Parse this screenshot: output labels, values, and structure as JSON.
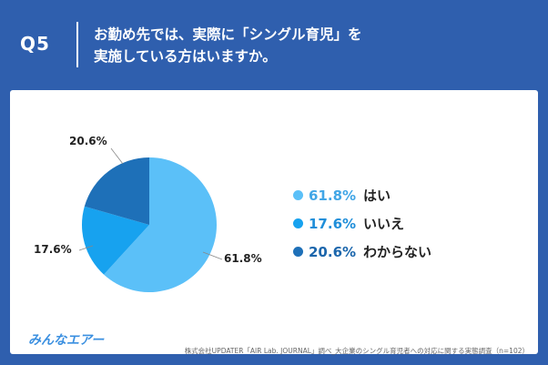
{
  "question": {
    "number": "Q5",
    "text_line1": "お勤め先では、実際に「シングル育児」を",
    "text_line2": "実施している方はいますか。"
  },
  "colors": {
    "header_bg": "#2F5FAE",
    "card_bg": "#FFFFFF"
  },
  "chart_data": {
    "type": "pie",
    "start_angle_deg": 0,
    "direction": "clockwise",
    "series": [
      {
        "label": "はい",
        "value": 61.8,
        "display": "61.8%",
        "color": "#5BC0F8",
        "pct_color": "#41A6E6"
      },
      {
        "label": "いいえ",
        "value": 17.6,
        "display": "17.6%",
        "color": "#17A2EF",
        "pct_color": "#1F8ED9"
      },
      {
        "label": "わからない",
        "value": 20.6,
        "display": "20.6%",
        "color": "#1E70B8",
        "pct_color": "#1B66AC"
      }
    ]
  },
  "footer": {
    "logo_text": "みんなエアー",
    "source": "株式会社UPDATER「AIR Lab. JOURNAL」調べ_大企業のシングル育児者への対応に関する実態調査（n=102）"
  }
}
